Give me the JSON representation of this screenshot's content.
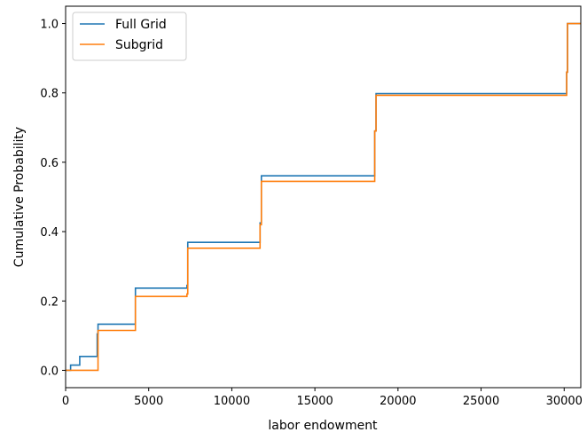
{
  "chart_data": {
    "type": "line",
    "xlabel": "labor endowment",
    "ylabel": "Cumulative Probability",
    "xlim": [
      0,
      31000
    ],
    "ylim": [
      -0.05,
      1.05
    ],
    "xticks": [
      0,
      5000,
      10000,
      15000,
      20000,
      25000,
      30000
    ],
    "xtick_labels": [
      "0",
      "5000",
      "10000",
      "15000",
      "20000",
      "25000",
      "30000"
    ],
    "yticks": [
      0.0,
      0.2,
      0.4,
      0.6,
      0.8,
      1.0
    ],
    "ytick_labels": [
      "0.0",
      "0.2",
      "0.4",
      "0.6",
      "0.8",
      "1.0"
    ],
    "grid": false,
    "legend_position": "top-left",
    "series": [
      {
        "name": "Full Grid",
        "color": "#1f77b4",
        "step": "post",
        "x": [
          0,
          300,
          850,
          1900,
          1950,
          4200,
          7300,
          7350,
          11700,
          11780,
          18600,
          18680,
          30150,
          30200,
          31000
        ],
        "y": [
          0.0,
          0.015,
          0.04,
          0.105,
          0.133,
          0.237,
          0.245,
          0.369,
          0.425,
          0.561,
          0.69,
          0.798,
          0.86,
          1.0,
          1.0
        ]
      },
      {
        "name": "Subgrid",
        "color": "#ff7f0e",
        "step": "post",
        "x": [
          0,
          1900,
          1950,
          4200,
          7300,
          7350,
          11700,
          11780,
          18600,
          18680,
          30150,
          30200,
          31000
        ],
        "y": [
          0.0,
          0.0,
          0.115,
          0.213,
          0.22,
          0.352,
          0.42,
          0.545,
          0.69,
          0.793,
          0.86,
          1.0,
          1.0
        ]
      }
    ]
  }
}
